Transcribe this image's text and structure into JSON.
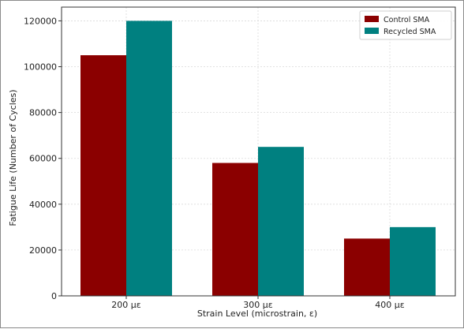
{
  "chart_data": {
    "type": "bar",
    "categories": [
      "200 με",
      "300 με",
      "400 με"
    ],
    "series": [
      {
        "name": "Control SMA",
        "values": [
          105000,
          58000,
          25000
        ],
        "color": "#8b0000"
      },
      {
        "name": "Recycled SMA",
        "values": [
          120000,
          65000,
          30000
        ],
        "color": "#008080"
      }
    ],
    "xlabel": "Strain Level (microstrain, ε)",
    "ylabel": "Fatigue Life (Number of Cycles)",
    "ylim": [
      0,
      126000
    ],
    "yticks": [
      0,
      20000,
      40000,
      60000,
      80000,
      100000,
      120000
    ],
    "grid": true,
    "legend_position": "top-right"
  }
}
